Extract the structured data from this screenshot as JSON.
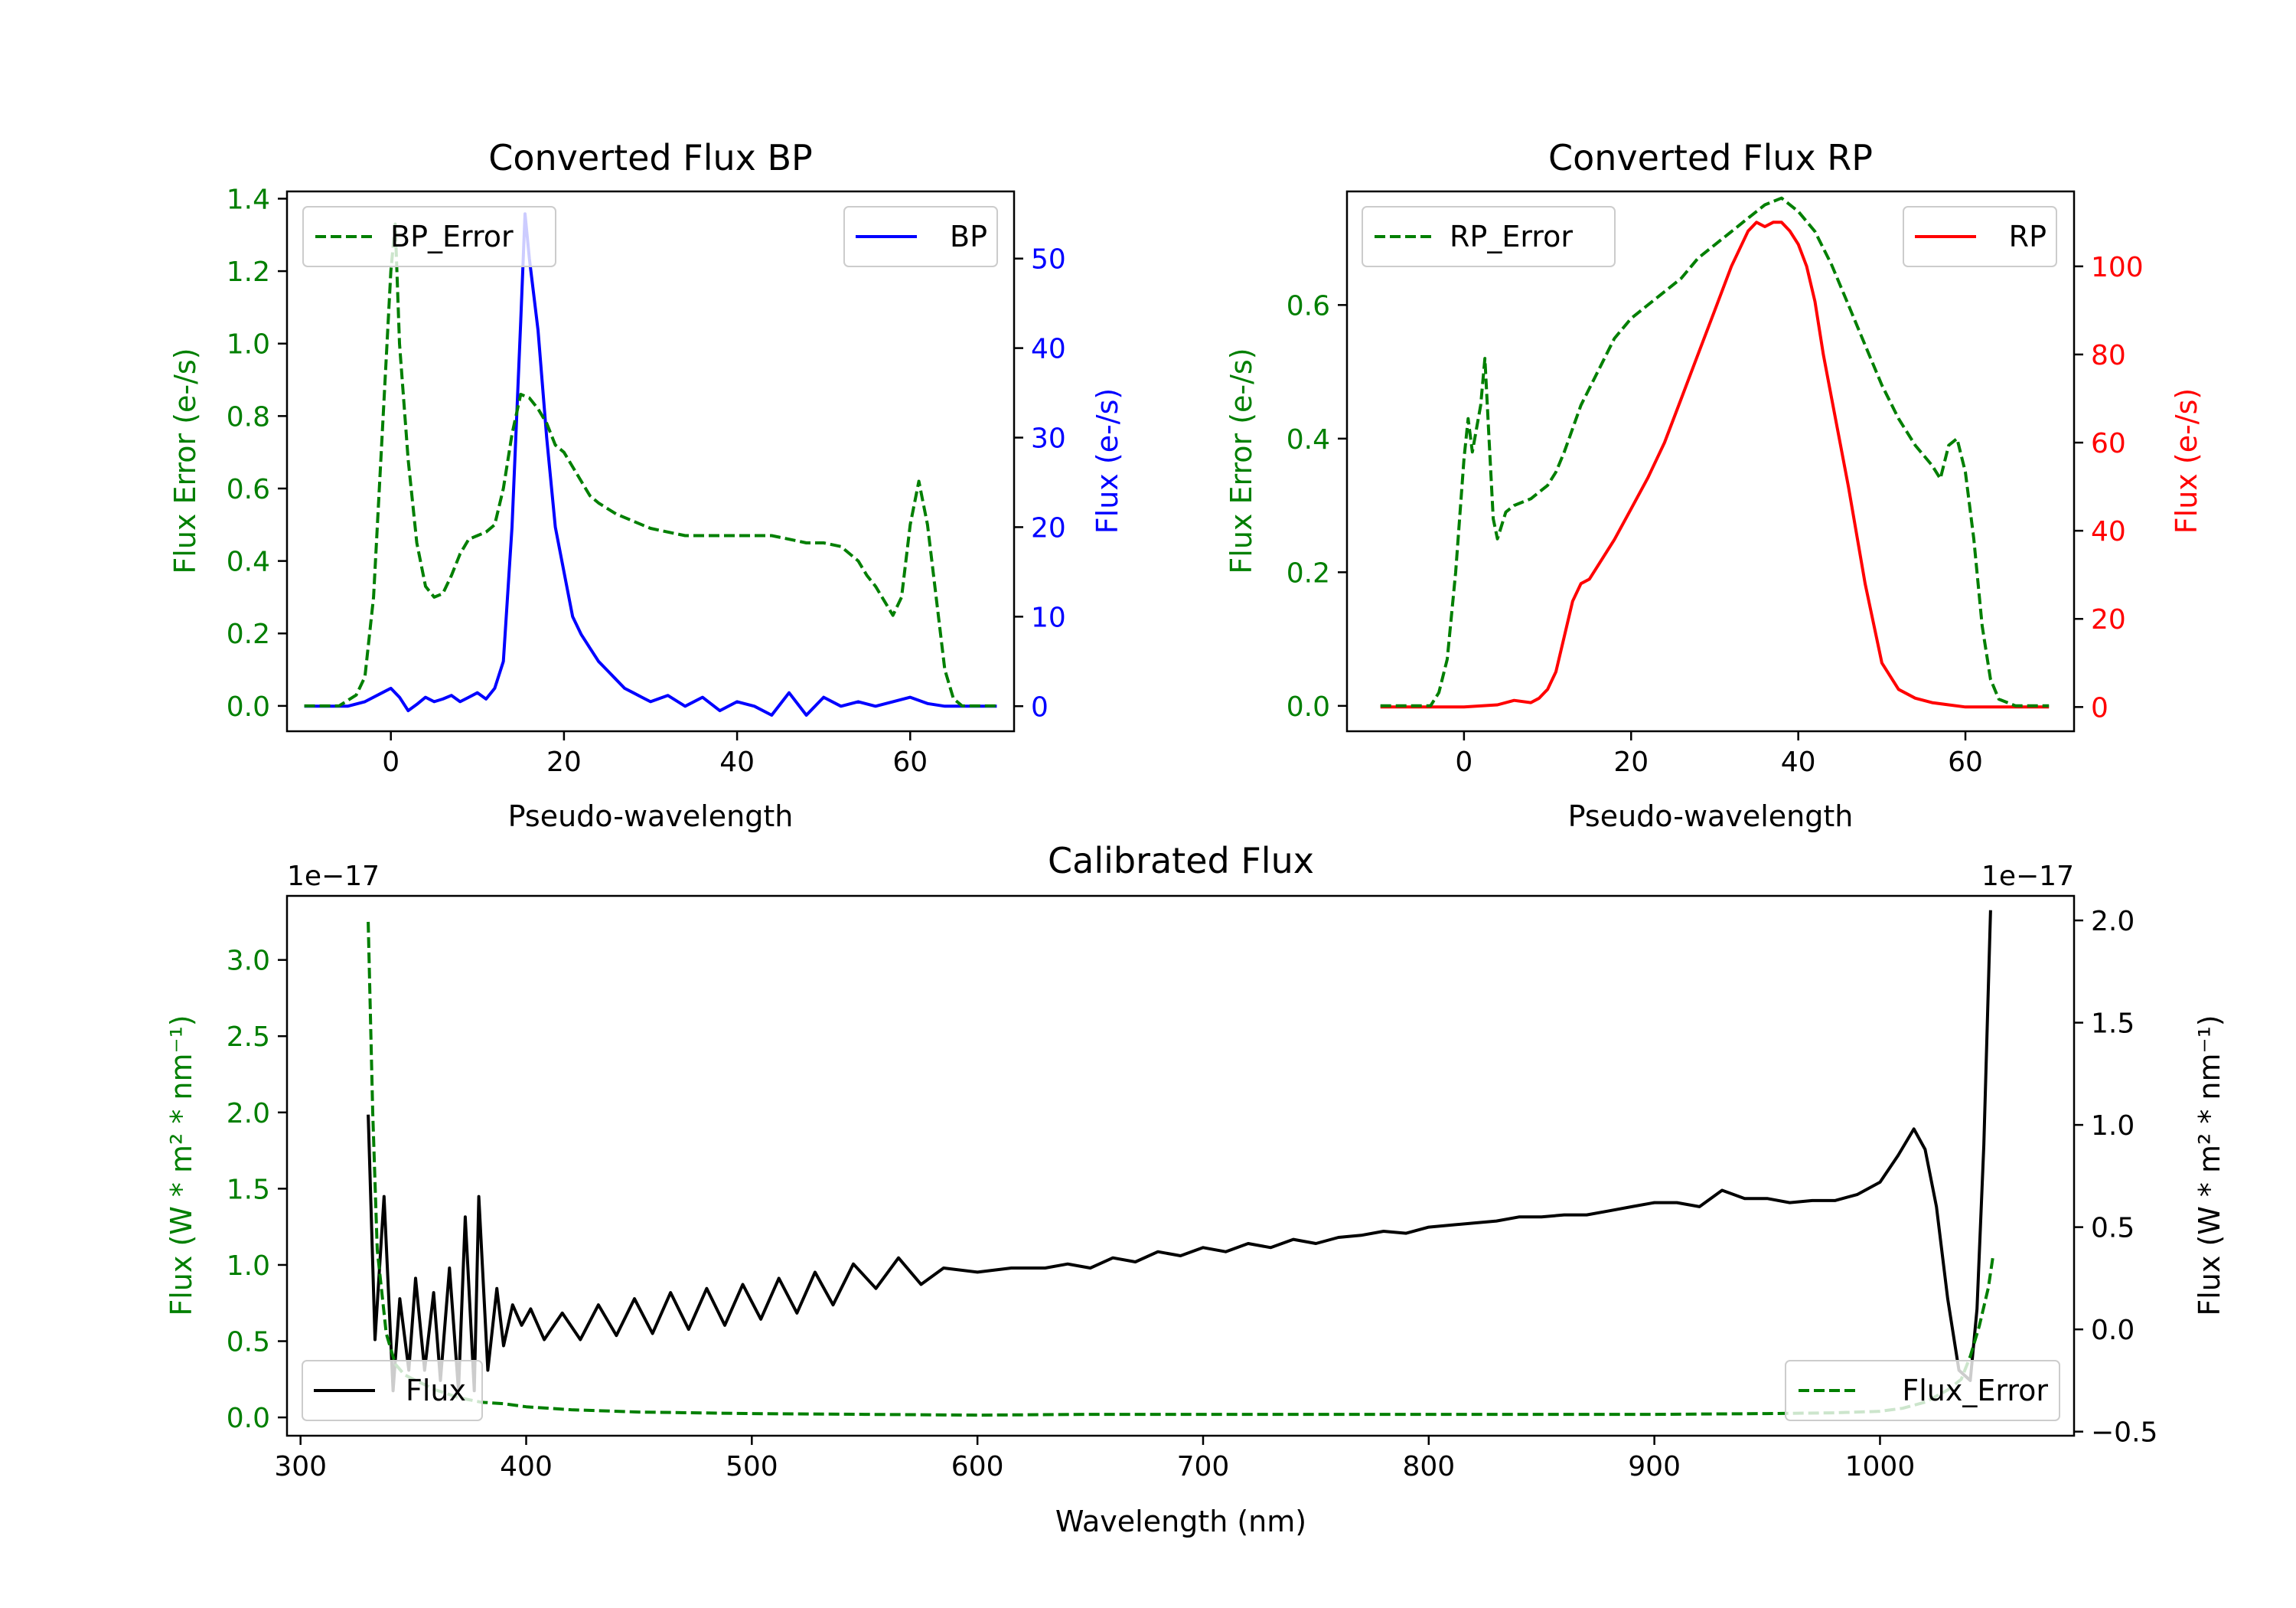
{
  "colors": {
    "bp": "#0000ff",
    "rp": "#ff0000",
    "error": "#007f00",
    "flux": "#000000",
    "axis": "#000000"
  },
  "chart_data": [
    {
      "id": "bp",
      "type": "line",
      "title": "Converted Flux BP",
      "xlabel": "Pseudo-wavelength",
      "ylabel_left": "Flux Error (e-/s)",
      "ylabel_right": "Flux (e-/s)",
      "xlim": [
        -12,
        72
      ],
      "ylim_left": [
        -0.07,
        1.42
      ],
      "ylim_right": [
        -2.8,
        57.5
      ],
      "xticks": [
        0,
        20,
        40,
        60
      ],
      "yticks_left": [
        0.0,
        0.2,
        0.4,
        0.6,
        0.8,
        1.0,
        1.2,
        1.4
      ],
      "yticks_right": [
        0,
        10,
        20,
        30,
        40,
        50
      ],
      "legend_left": {
        "label": "BP_Error",
        "position": "top-left"
      },
      "legend_right": {
        "label": "BP",
        "position": "top-right"
      },
      "series_error": {
        "name": "BP_Error",
        "axis": "left",
        "style": "dashed",
        "color": "#007f00",
        "x": [
          -10,
          -6,
          -4,
          -3,
          -2,
          -1,
          0,
          0.5,
          1,
          2,
          3,
          4,
          5,
          6,
          7,
          8,
          9,
          10,
          11,
          12,
          13,
          14,
          15,
          16,
          17,
          18,
          19,
          20,
          21,
          22,
          23,
          24,
          26,
          28,
          30,
          32,
          34,
          36,
          38,
          40,
          42,
          44,
          46,
          48,
          50,
          52,
          54,
          55,
          56,
          57,
          58,
          59,
          60,
          61,
          62,
          63,
          64,
          65,
          66,
          68,
          70
        ],
        "y": [
          0,
          0,
          0.03,
          0.08,
          0.3,
          0.75,
          1.2,
          1.33,
          1.0,
          0.68,
          0.45,
          0.33,
          0.3,
          0.31,
          0.36,
          0.42,
          0.46,
          0.47,
          0.48,
          0.5,
          0.6,
          0.75,
          0.86,
          0.85,
          0.82,
          0.78,
          0.72,
          0.7,
          0.66,
          0.62,
          0.58,
          0.56,
          0.53,
          0.51,
          0.49,
          0.48,
          0.47,
          0.47,
          0.47,
          0.47,
          0.47,
          0.47,
          0.46,
          0.45,
          0.45,
          0.44,
          0.4,
          0.36,
          0.33,
          0.29,
          0.25,
          0.3,
          0.5,
          0.62,
          0.5,
          0.3,
          0.1,
          0.02,
          0,
          0,
          0
        ]
      },
      "series_flux": {
        "name": "BP",
        "axis": "right",
        "style": "solid",
        "color": "#0000ff",
        "x": [
          -10,
          -5,
          -3,
          -1,
          0,
          1,
          2,
          3,
          4,
          5,
          6,
          7,
          8,
          9,
          10,
          11,
          12,
          13,
          14,
          15,
          15.5,
          16,
          17,
          18,
          19,
          20,
          21,
          22,
          23,
          24,
          25,
          26,
          27,
          28,
          29,
          30,
          32,
          34,
          36,
          38,
          40,
          42,
          44,
          46,
          48,
          50,
          52,
          54,
          56,
          58,
          60,
          62,
          64,
          66,
          68,
          70
        ],
        "y": [
          0,
          0,
          0.5,
          1.5,
          2.0,
          1.0,
          -0.5,
          0.2,
          1.0,
          0.5,
          0.8,
          1.2,
          0.5,
          1.0,
          1.5,
          0.8,
          2.0,
          5.0,
          20,
          43,
          55,
          50,
          42,
          30,
          20,
          15,
          10,
          8,
          6.5,
          5,
          4,
          3,
          2,
          1.5,
          1,
          0.5,
          1.2,
          0,
          1,
          -0.5,
          0.5,
          0,
          -1,
          1.5,
          -1,
          1,
          0,
          0.5,
          0,
          0.5,
          1.0,
          0.3,
          0,
          0,
          0,
          0
        ]
      }
    },
    {
      "id": "rp",
      "type": "line",
      "title": "Converted Flux RP",
      "xlabel": "Pseudo-wavelength",
      "ylabel_left": "Flux Error (e-/s)",
      "ylabel_right": "Flux (e-/s)",
      "xlim": [
        -14,
        73
      ],
      "ylim_left": [
        -0.038,
        0.77
      ],
      "ylim_right": [
        -5.5,
        117
      ],
      "xticks": [
        0,
        20,
        40,
        60
      ],
      "yticks_left": [
        0.0,
        0.2,
        0.4,
        0.6
      ],
      "yticks_right": [
        0,
        20,
        40,
        60,
        80,
        100
      ],
      "legend_left": {
        "label": "RP_Error",
        "position": "top-left"
      },
      "legend_right": {
        "label": "RP",
        "position": "top-right"
      },
      "series_error": {
        "name": "RP_Error",
        "axis": "left",
        "style": "dashed",
        "color": "#007f00",
        "x": [
          -10,
          -4,
          -3,
          -2,
          -1,
          0,
          0.5,
          1,
          2,
          2.5,
          3,
          3.5,
          4,
          5,
          6,
          8,
          10,
          11,
          12,
          14,
          16,
          18,
          20,
          22,
          24,
          26,
          28,
          30,
          32,
          34,
          36,
          38,
          40,
          42,
          44,
          46,
          48,
          50,
          52,
          54,
          56,
          57,
          58,
          59,
          60,
          61,
          62,
          63,
          64,
          66,
          68,
          70
        ],
        "y": [
          0,
          0,
          0.02,
          0.07,
          0.2,
          0.37,
          0.43,
          0.38,
          0.45,
          0.52,
          0.4,
          0.28,
          0.25,
          0.29,
          0.3,
          0.31,
          0.33,
          0.35,
          0.38,
          0.45,
          0.5,
          0.55,
          0.58,
          0.6,
          0.62,
          0.64,
          0.67,
          0.69,
          0.71,
          0.73,
          0.75,
          0.76,
          0.74,
          0.71,
          0.66,
          0.6,
          0.54,
          0.48,
          0.43,
          0.39,
          0.36,
          0.34,
          0.39,
          0.4,
          0.35,
          0.25,
          0.12,
          0.04,
          0.01,
          0,
          0,
          0
        ]
      },
      "series_flux": {
        "name": "RP",
        "axis": "right",
        "style": "solid",
        "color": "#ff0000",
        "x": [
          -10,
          0,
          4,
          6,
          8,
          9,
          10,
          11,
          12,
          13,
          14,
          15,
          16,
          18,
          20,
          22,
          24,
          26,
          28,
          30,
          32,
          34,
          35,
          36,
          37,
          38,
          39,
          40,
          41,
          42,
          43,
          44,
          46,
          48,
          50,
          52,
          54,
          56,
          58,
          60,
          62,
          64,
          66,
          68,
          70
        ],
        "y": [
          0,
          0,
          0.5,
          1.5,
          1,
          2,
          4,
          8,
          16,
          24,
          28,
          29,
          32,
          38,
          45,
          52,
          60,
          70,
          80,
          90,
          100,
          108,
          110,
          109,
          110,
          110,
          108,
          105,
          100,
          92,
          80,
          70,
          50,
          28,
          10,
          4,
          2,
          1,
          0.5,
          0,
          0,
          0,
          0,
          0,
          0
        ]
      }
    },
    {
      "id": "calibrated",
      "type": "line",
      "title": "Calibrated Flux",
      "xlabel": "Wavelength (nm)",
      "ylabel_left": "Flux (W * m² * nm⁻¹)",
      "ylabel_right": "Flux (W * m² * nm⁻¹)",
      "offset_left": "1e−17",
      "offset_right": "1e−17",
      "xlim": [
        294,
        1086
      ],
      "ylim_left": [
        -0.12,
        3.42
      ],
      "ylim_right": [
        -0.52,
        2.12
      ],
      "xticks": [
        300,
        400,
        500,
        600,
        700,
        800,
        900,
        1000
      ],
      "yticks_left": [
        0.0,
        0.5,
        1.0,
        1.5,
        2.0,
        2.5,
        3.0
      ],
      "yticks_right": [
        -0.5,
        0.0,
        0.5,
        1.0,
        1.5,
        2.0
      ],
      "legend_left": {
        "label": "Flux",
        "position": "bottom-left"
      },
      "legend_right": {
        "label": "Flux_Error",
        "position": "bottom-right"
      },
      "series_error": {
        "name": "Flux_Error",
        "axis": "left",
        "style": "dashed",
        "color": "#007f00",
        "x": [
          330,
          332,
          334,
          338,
          342,
          346,
          350,
          360,
          370,
          380,
          390,
          400,
          420,
          450,
          500,
          550,
          600,
          650,
          700,
          750,
          800,
          850,
          900,
          950,
          980,
          1000,
          1010,
          1020,
          1030,
          1036,
          1040,
          1044,
          1048,
          1050
        ],
        "y": [
          3.25,
          2.0,
          1.1,
          0.55,
          0.35,
          0.28,
          0.25,
          0.18,
          0.13,
          0.1,
          0.09,
          0.07,
          0.05,
          0.035,
          0.025,
          0.02,
          0.015,
          0.02,
          0.02,
          0.02,
          0.02,
          0.02,
          0.02,
          0.025,
          0.03,
          0.04,
          0.06,
          0.1,
          0.18,
          0.25,
          0.4,
          0.6,
          0.85,
          1.05
        ]
      },
      "series_flux": {
        "name": "Flux",
        "axis": "right",
        "style": "solid",
        "color": "#000000",
        "x": [
          330,
          333,
          337,
          341,
          344,
          348,
          351,
          355,
          359,
          362,
          366,
          370,
          373,
          377,
          379,
          383,
          387,
          390,
          394,
          398,
          402,
          408,
          416,
          424,
          432,
          440,
          448,
          456,
          464,
          472,
          480,
          488,
          496,
          504,
          512,
          520,
          528,
          536,
          545,
          555,
          565,
          575,
          585,
          600,
          615,
          630,
          640,
          650,
          660,
          670,
          680,
          690,
          700,
          710,
          720,
          730,
          740,
          750,
          760,
          770,
          780,
          790,
          800,
          810,
          820,
          830,
          840,
          850,
          860,
          870,
          880,
          890,
          900,
          910,
          920,
          930,
          940,
          950,
          960,
          970,
          980,
          990,
          1000,
          1008,
          1015,
          1020,
          1025,
          1030,
          1035,
          1040,
          1043,
          1046,
          1049
        ],
        "y": [
          1.05,
          -0.05,
          0.65,
          -0.3,
          0.15,
          -0.2,
          0.25,
          -0.2,
          0.18,
          -0.25,
          0.3,
          -0.3,
          0.55,
          -0.3,
          0.65,
          -0.2,
          0.2,
          -0.08,
          0.12,
          0.02,
          0.1,
          -0.05,
          0.08,
          -0.05,
          0.12,
          -0.03,
          0.15,
          -0.02,
          0.18,
          0.0,
          0.2,
          0.02,
          0.22,
          0.05,
          0.25,
          0.08,
          0.28,
          0.12,
          0.32,
          0.2,
          0.35,
          0.22,
          0.3,
          0.28,
          0.3,
          0.3,
          0.32,
          0.3,
          0.35,
          0.33,
          0.38,
          0.36,
          0.4,
          0.38,
          0.42,
          0.4,
          0.44,
          0.42,
          0.45,
          0.46,
          0.48,
          0.47,
          0.5,
          0.51,
          0.52,
          0.53,
          0.55,
          0.55,
          0.56,
          0.56,
          0.58,
          0.6,
          0.62,
          0.62,
          0.6,
          0.68,
          0.64,
          0.64,
          0.62,
          0.63,
          0.63,
          0.66,
          0.72,
          0.85,
          0.98,
          0.88,
          0.6,
          0.15,
          -0.2,
          -0.25,
          0.1,
          0.9,
          2.05
        ]
      }
    }
  ]
}
